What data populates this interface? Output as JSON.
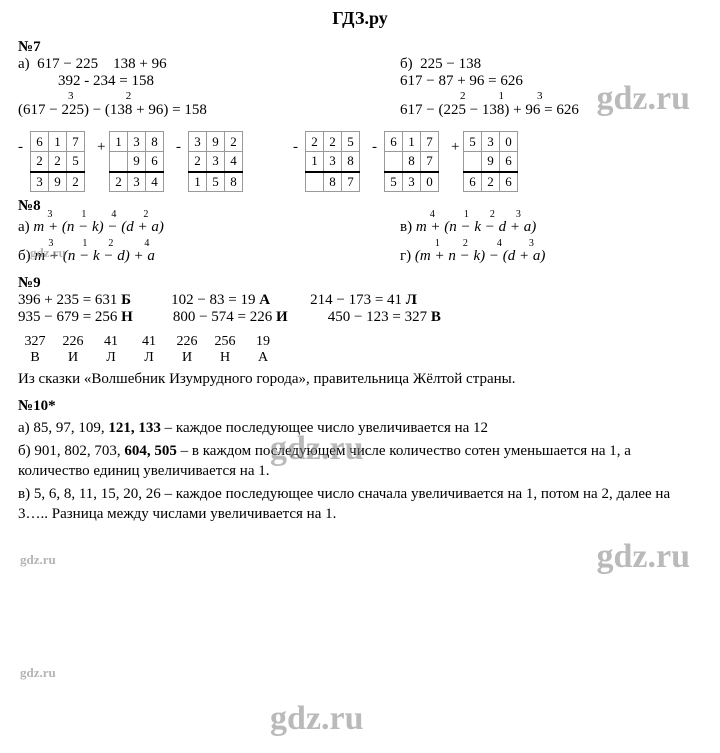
{
  "header": {
    "logo": "ГДЗ.ру"
  },
  "watermarks": [
    "gdz.ru",
    "gdz.ru",
    "gdz.ru",
    "gdz.ru",
    "gdz.ru",
    "gdz.ru",
    "gdz.ru"
  ],
  "p7": {
    "title": "№7",
    "a": {
      "label": "а)",
      "line1_left": "617 − 225",
      "line1_right": "138 + 96",
      "line2": "392     -    234 = 158",
      "sup": [
        "3",
        "",
        "2"
      ],
      "expr": "(617 − 225) − (138 + 96) = 158"
    },
    "b": {
      "label": "б)",
      "line1": "225 − 138",
      "line2": "617 − 87 + 96 = 626",
      "sup": [
        "2",
        "1",
        "3"
      ],
      "expr": "617 − (225 − 138) + 96 = 626"
    },
    "calc1": {
      "op": "-",
      "r1": [
        "6",
        "1",
        "7"
      ],
      "r2": [
        "2",
        "2",
        "5"
      ],
      "res": [
        "3",
        "9",
        "2"
      ]
    },
    "calc2": {
      "op": "+",
      "r1": [
        "1",
        "3",
        "8"
      ],
      "r2": [
        "",
        "9",
        "6"
      ],
      "res": [
        "2",
        "3",
        "4"
      ]
    },
    "calc3": {
      "op": "-",
      "r1": [
        "3",
        "9",
        "2"
      ],
      "r2": [
        "2",
        "3",
        "4"
      ],
      "res": [
        "1",
        "5",
        "8"
      ]
    },
    "calc4": {
      "op": "-",
      "r1": [
        "2",
        "2",
        "5"
      ],
      "r2": [
        "1",
        "3",
        "8"
      ],
      "res": [
        "",
        "8",
        "7"
      ]
    },
    "calc5": {
      "op": "-",
      "r1": [
        "6",
        "1",
        "7"
      ],
      "r2": [
        "",
        "8",
        "7"
      ],
      "res": [
        "5",
        "3",
        "0"
      ]
    },
    "calc6": {
      "op": "+",
      "r1": [
        "5",
        "3",
        "0"
      ],
      "r2": [
        "",
        "9",
        "6"
      ],
      "res": [
        "6",
        "2",
        "6"
      ]
    }
  },
  "p8": {
    "title": "№8",
    "a": {
      "label": "а)",
      "sup": [
        "3",
        "1",
        "4",
        "2"
      ],
      "expr": "m + (n − k) − (d + a)"
    },
    "b": {
      "label": "б)",
      "sup": [
        "3",
        "1",
        "2",
        "4"
      ],
      "expr": "m + (n − k − d) + a"
    },
    "v": {
      "label": "в)",
      "sup": [
        "4",
        "1",
        "2",
        "3"
      ],
      "expr": "m + (n − k − d + a)"
    },
    "g": {
      "label": "г)",
      "sup": [
        "1",
        "2",
        "4",
        "3"
      ],
      "expr": "(m + n − k) − (d + a)"
    }
  },
  "p9": {
    "title": "№9",
    "items": [
      {
        "calc": "396 + 235 = 631",
        "letter": "Б"
      },
      {
        "calc": "102 − 83 = 19",
        "letter": "А"
      },
      {
        "calc": "214 − 173 = 41",
        "letter": "Л"
      },
      {
        "calc": "935 − 679 = 256",
        "letter": "Н"
      },
      {
        "calc": "800 − 574 = 226",
        "letter": "И"
      },
      {
        "calc": "450 − 123 = 327",
        "letter": "В"
      }
    ],
    "answer_nums": [
      "327",
      "226",
      "41",
      "41",
      "226",
      "256",
      "19"
    ],
    "answer_letters": [
      "В",
      "И",
      "Л",
      "Л",
      "И",
      "Н",
      "А"
    ],
    "note": "Из сказки «Волшебник Изумрудного города», правительница Жёлтой страны."
  },
  "p10": {
    "title": "№10*",
    "a": "а) 85, 97, 109, 121, 133 – каждое последующее число увеличивается на 12",
    "a_bold": "121, 133",
    "b": "б) 901, 802, 703, 604, 505 – в каждом последующем числе количество сотен уменьшается на 1, а количество единиц увеличивается на 1.",
    "b_bold": "604, 505",
    "v": "в) 5, 6, 8, 11, 15, 20, 26 – каждое последующее число сначала увеличивается на 1, потом на 2, далее на 3….. Разница между числами увеличивается на 1."
  }
}
